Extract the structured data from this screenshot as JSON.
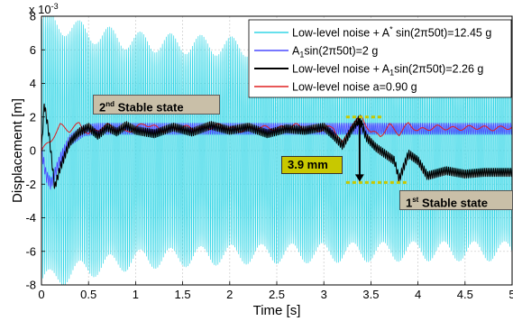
{
  "chart_data": {
    "type": "line",
    "xlabel": "Time [s]",
    "ylabel": "Displacement [m]",
    "y_exponent": "x 10",
    "y_exponent_power": "-3",
    "xlim": [
      0,
      5
    ],
    "ylim": [
      -8,
      8
    ],
    "xticks": [
      "0",
      "0.5",
      "1",
      "1.5",
      "2",
      "2.5",
      "3",
      "3.5",
      "4",
      "4.5",
      "5"
    ],
    "yticks": [
      "8",
      "6",
      "4",
      "2",
      "0",
      "-2",
      "-4",
      "-6",
      "-8"
    ],
    "grid": true,
    "legend_position": "top-right",
    "series": [
      {
        "name": "Low-level noise + A* sin(2π50t)=12.45 g",
        "legend_parts": [
          "Low-level noise + A",
          "*",
          " sin(2π50t)=12.45 g"
        ],
        "color": "#33d6e6",
        "amplitude_envelope": [
          [
            0,
            7.8
          ],
          [
            0.5,
            7.0
          ],
          [
            1.0,
            6.5
          ],
          [
            2.0,
            6.2
          ],
          [
            3.0,
            6.1
          ],
          [
            4.0,
            6.0
          ],
          [
            5.0,
            6.0
          ]
        ],
        "frequency_hz": 50,
        "center": 0
      },
      {
        "name": "A1sin(2π50t)=2 g",
        "legend_parts": [
          "A",
          "1",
          "sin(2π50t)=2 g"
        ],
        "color": "#4a4aff",
        "x": [
          0,
          0.05,
          0.1,
          0.2,
          0.3,
          0.45,
          0.6,
          1.0,
          2.0,
          3.0,
          4.0,
          5.0
        ],
        "y": [
          0,
          -1.5,
          -2.0,
          -0.5,
          0.6,
          1.2,
          1.3,
          1.3,
          1.3,
          1.3,
          1.3,
          1.3
        ],
        "oscillation_amplitude": 0.35
      },
      {
        "name": "Low-level noise + A1sin(2π50t)=2.26 g",
        "legend_parts": [
          "Low-level noise + A",
          "1",
          "sin(2π50t)=2.26 g"
        ],
        "color": "#000000",
        "x": [
          0,
          0.03,
          0.08,
          0.14,
          0.2,
          0.3,
          0.4,
          0.5,
          0.6,
          0.7,
          0.8,
          0.9,
          1.0,
          1.2,
          1.4,
          1.6,
          1.8,
          2.0,
          2.2,
          2.4,
          2.6,
          2.8,
          3.0,
          3.1,
          3.2,
          3.3,
          3.38,
          3.45,
          3.55,
          3.65,
          3.75,
          3.8,
          3.9,
          4.0,
          4.1,
          4.3,
          4.5,
          4.7,
          5.0
        ],
        "y": [
          0,
          2.8,
          1.0,
          -2.2,
          -1.0,
          0.5,
          1.1,
          1.4,
          0.9,
          1.4,
          1.1,
          1.5,
          1.2,
          1.0,
          1.4,
          1.1,
          1.5,
          1.2,
          1.4,
          1.0,
          1.3,
          1.2,
          1.4,
          0.9,
          0.3,
          1.3,
          1.9,
          0.8,
          0.2,
          -0.2,
          -0.6,
          -1.7,
          -0.2,
          -0.6,
          -1.5,
          -1.2,
          -1.4,
          -1.3,
          -1.3
        ],
        "oscillation_amplitude": 0.25
      },
      {
        "name": "Low-level noise a=0.90 g",
        "color": "#e02020",
        "x": [
          0,
          0.1,
          0.2,
          0.3,
          0.4,
          0.5,
          0.7,
          0.9,
          1.1,
          1.3,
          1.5,
          1.7,
          1.9,
          2.1,
          2.3,
          2.5,
          2.7,
          2.9,
          3.1,
          3.2,
          3.3,
          3.4,
          3.5,
          3.6,
          3.7,
          3.8,
          3.9,
          4.0,
          4.2,
          4.4,
          4.6,
          4.8,
          5.0
        ],
        "y": [
          0,
          0.6,
          1.5,
          1.2,
          1.6,
          1.0,
          1.5,
          1.1,
          1.6,
          1.2,
          1.4,
          1.3,
          1.5,
          1.2,
          1.4,
          1.3,
          1.5,
          1.2,
          1.4,
          0.4,
          1.6,
          2.0,
          1.1,
          0.9,
          1.5,
          1.0,
          1.6,
          1.2,
          1.4,
          1.3,
          1.4,
          1.3,
          1.4
        ]
      }
    ],
    "annotations": {
      "stable2": {
        "main": "2",
        "sup": "nd",
        "rest": " Stable state"
      },
      "stable1": {
        "main": "1",
        "sup": "st",
        "rest": " Stable state"
      },
      "gap": "3.9 mm",
      "gap_top": 2.0,
      "gap_bottom": -1.9,
      "gap_x": 3.38
    }
  }
}
